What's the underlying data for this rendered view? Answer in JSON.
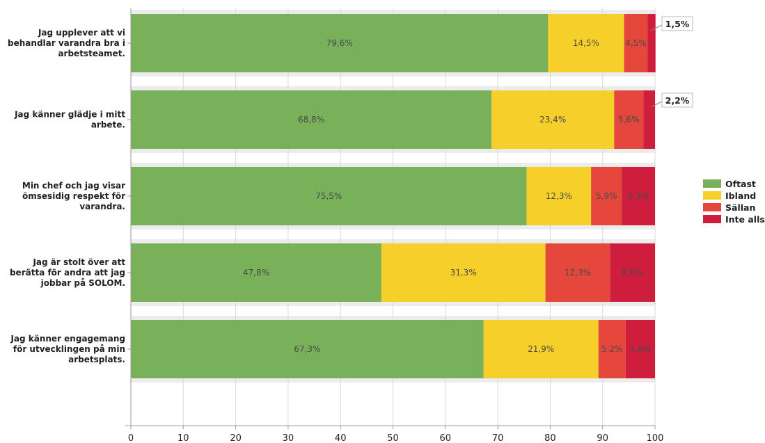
{
  "chart_data": {
    "type": "bar",
    "orientation": "horizontal",
    "stacked": true,
    "xlim": [
      0,
      100
    ],
    "xticks": [
      0,
      10,
      20,
      30,
      40,
      50,
      60,
      70,
      80,
      90,
      100
    ],
    "grid": false,
    "legend_position": "right",
    "categories": [
      [
        "Jag upplever att vi",
        "behandlar varandra bra i",
        "arbetsteamet."
      ],
      [
        "Jag känner glädje i mitt",
        "arbete."
      ],
      [
        "Min chef och jag visar",
        "ömsesidig respekt för",
        "varandra."
      ],
      [
        "Jag är stolt över att",
        "berätta för andra att jag",
        "jobbar på SOLOM."
      ],
      [
        "Jag känner engagemang",
        "för utvecklingen på min",
        "arbetsplats."
      ]
    ],
    "series": [
      {
        "name": "Oftast",
        "color": "#79b05a",
        "values": [
          79.6,
          68.8,
          75.5,
          47.8,
          67.3
        ],
        "labels": [
          "79,6%",
          "68,8%",
          "75,5%",
          "47,8%",
          "67,3%"
        ]
      },
      {
        "name": "Ibland",
        "color": "#f7cf2b",
        "values": [
          14.5,
          23.4,
          12.3,
          31.3,
          21.9
        ],
        "labels": [
          "14,5%",
          "23,4%",
          "12,3%",
          "31,3%",
          "21,9%"
        ]
      },
      {
        "name": "Sällan",
        "color": "#e5473c",
        "values": [
          4.5,
          5.6,
          5.9,
          12.3,
          5.2
        ],
        "labels": [
          "4,5%",
          "5,6%",
          "5,9%",
          "12,3%",
          "5,2%"
        ]
      },
      {
        "name": "Inte alls",
        "color": "#cf1d3d",
        "values": [
          1.5,
          2.2,
          6.3,
          8.6,
          5.6
        ],
        "labels": [
          "",
          "",
          "6,3%",
          "8,6%",
          "5,6%"
        ]
      }
    ],
    "callouts": [
      {
        "row": 0,
        "text": "1,5%"
      },
      {
        "row": 1,
        "text": "2,2%"
      }
    ],
    "colors": {
      "band": "#ececec",
      "axis": "#9a9a9a",
      "grid": "#d8d8d8"
    }
  }
}
